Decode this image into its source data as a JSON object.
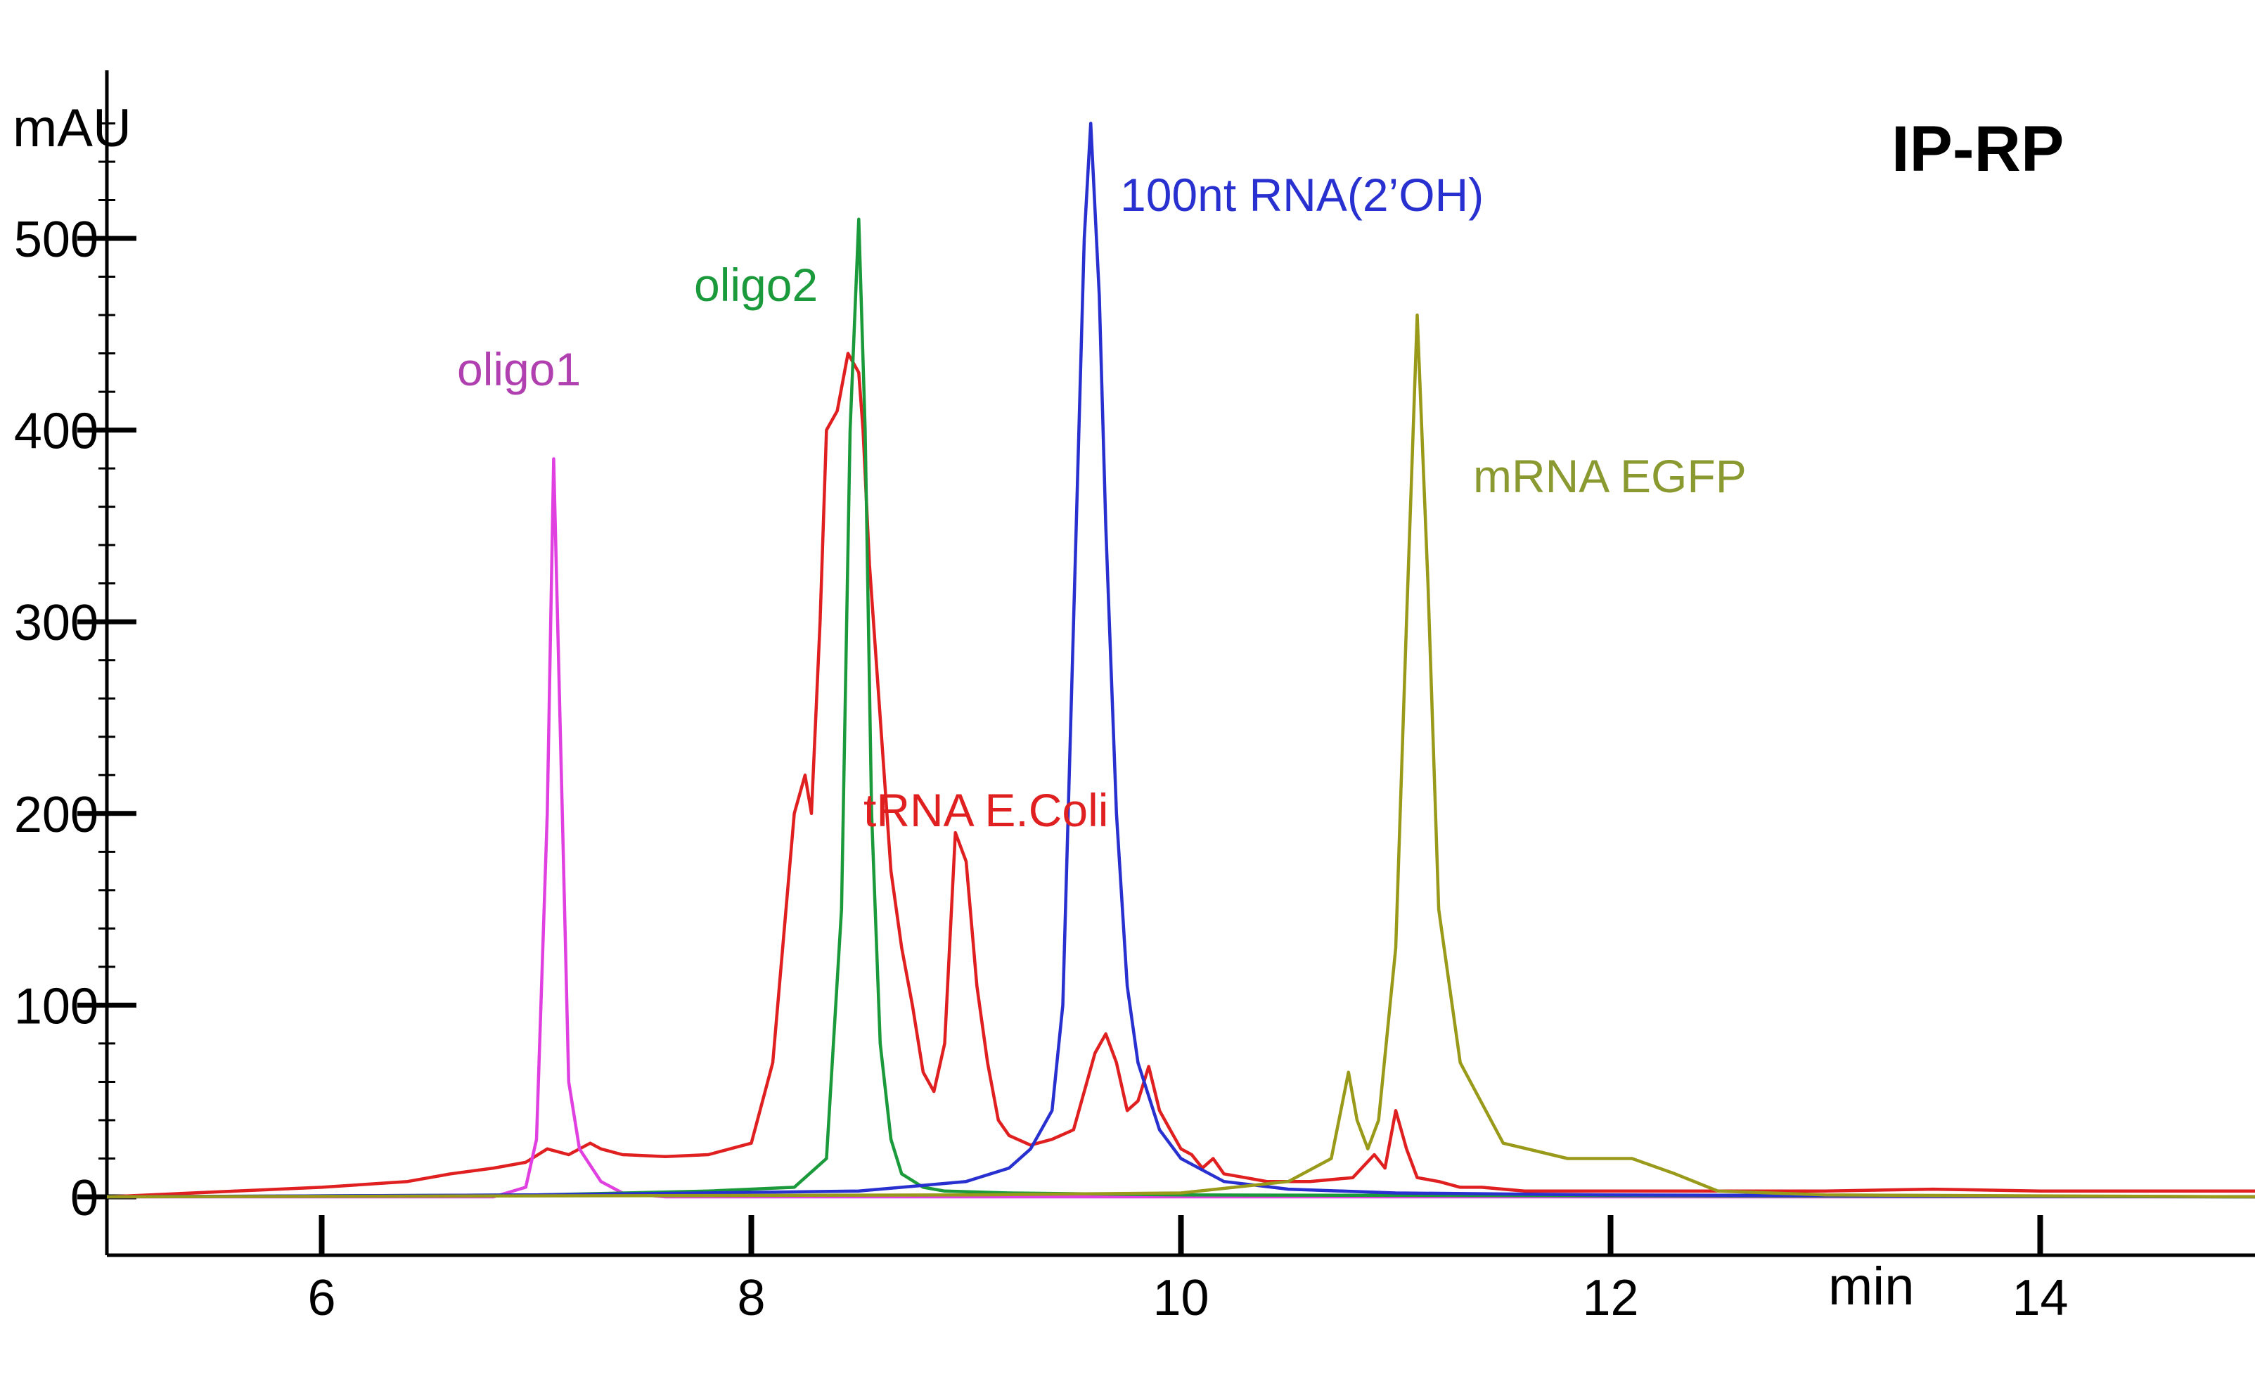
{
  "chart_data": {
    "type": "line",
    "title": "IP-RP",
    "xlabel": "min",
    "ylabel": "mAU",
    "xlim": [
      5.0,
      15.0
    ],
    "ylim": [
      -30,
      590
    ],
    "x_ticks": [
      6,
      8,
      10,
      12,
      14
    ],
    "y_ticks": [
      0,
      100,
      200,
      300,
      400,
      500
    ],
    "grid": false,
    "series": [
      {
        "name": "tRNA E.Coli",
        "color": "#e02020",
        "x": [
          5.0,
          5.6,
          6.0,
          6.4,
          6.6,
          6.8,
          6.95,
          7.05,
          7.15,
          7.25,
          7.3,
          7.4,
          7.6,
          7.8,
          8.0,
          8.1,
          8.2,
          8.25,
          8.28,
          8.32,
          8.35,
          8.4,
          8.45,
          8.5,
          8.52,
          8.55,
          8.6,
          8.65,
          8.7,
          8.75,
          8.8,
          8.85,
          8.9,
          8.95,
          9.0,
          9.05,
          9.1,
          9.15,
          9.2,
          9.3,
          9.4,
          9.5,
          9.6,
          9.65,
          9.7,
          9.75,
          9.8,
          9.85,
          9.9,
          9.95,
          10.0,
          10.05,
          10.1,
          10.15,
          10.2,
          10.4,
          10.6,
          10.8,
          10.9,
          10.95,
          11.0,
          11.05,
          11.1,
          11.2,
          11.3,
          11.4,
          11.6,
          12.0,
          13.0,
          13.5,
          14.0,
          15.0
        ],
        "y": [
          0,
          3,
          5,
          8,
          12,
          15,
          18,
          25,
          22,
          28,
          25,
          22,
          21,
          22,
          28,
          70,
          200,
          220,
          200,
          300,
          400,
          410,
          440,
          430,
          400,
          330,
          250,
          170,
          130,
          100,
          65,
          55,
          80,
          190,
          175,
          110,
          70,
          40,
          32,
          27,
          30,
          35,
          75,
          85,
          70,
          45,
          50,
          68,
          45,
          35,
          25,
          22,
          15,
          20,
          12,
          8,
          8,
          10,
          22,
          15,
          45,
          25,
          10,
          8,
          5,
          5,
          3,
          3,
          3,
          4,
          3,
          3
        ]
      },
      {
        "name": "oligo1",
        "color": "#e040e0",
        "x": [
          5.0,
          6.8,
          6.95,
          7.0,
          7.05,
          7.08,
          7.12,
          7.15,
          7.2,
          7.3,
          7.4,
          7.6,
          9.0,
          11.0,
          15.0
        ],
        "y": [
          0,
          0,
          5,
          30,
          200,
          385,
          200,
          60,
          25,
          8,
          2,
          0,
          0,
          0,
          0
        ]
      },
      {
        "name": "oligo2",
        "color": "#1a9a3a",
        "x": [
          5.0,
          7.0,
          7.8,
          8.2,
          8.35,
          8.42,
          8.46,
          8.5,
          8.53,
          8.56,
          8.6,
          8.65,
          8.7,
          8.8,
          8.9,
          9.2,
          10.0,
          15.0
        ],
        "y": [
          0,
          1,
          3,
          5,
          20,
          150,
          400,
          510,
          400,
          200,
          80,
          30,
          12,
          5,
          3,
          2,
          1,
          0
        ]
      },
      {
        "name": "100nt RNA(2’OH)",
        "color": "#2830d0",
        "x": [
          5.0,
          7.0,
          8.5,
          9.0,
          9.2,
          9.3,
          9.4,
          9.45,
          9.5,
          9.55,
          9.58,
          9.62,
          9.65,
          9.7,
          9.75,
          9.8,
          9.9,
          10.0,
          10.2,
          10.5,
          11.0,
          12.0,
          15.0
        ],
        "y": [
          0,
          1,
          3,
          8,
          15,
          25,
          45,
          100,
          300,
          500,
          560,
          470,
          350,
          200,
          110,
          70,
          35,
          20,
          8,
          4,
          2,
          1,
          0
        ]
      },
      {
        "name": "mRNA EGFP",
        "color": "#9a9a1a",
        "x": [
          5.0,
          9.0,
          10.0,
          10.5,
          10.7,
          10.78,
          10.82,
          10.87,
          10.92,
          11.0,
          11.05,
          11.1,
          11.15,
          11.2,
          11.3,
          11.5,
          11.8,
          12.1,
          12.3,
          12.5,
          13.0,
          15.0
        ],
        "y": [
          0,
          1,
          2,
          8,
          20,
          65,
          40,
          25,
          40,
          130,
          300,
          460,
          320,
          150,
          70,
          28,
          20,
          20,
          12,
          3,
          1,
          0
        ]
      }
    ],
    "annotations": [
      {
        "text": "oligo1",
        "color": "#b040b0"
      },
      {
        "text": "oligo2",
        "color": "#1a9a3a"
      },
      {
        "text": "100nt RNA(2’OH)",
        "color": "#2830d0"
      },
      {
        "text": "mRNA EGFP",
        "color": "#8a9a30"
      },
      {
        "text": "tRNA E.Coli",
        "color": "#e02020"
      }
    ]
  }
}
